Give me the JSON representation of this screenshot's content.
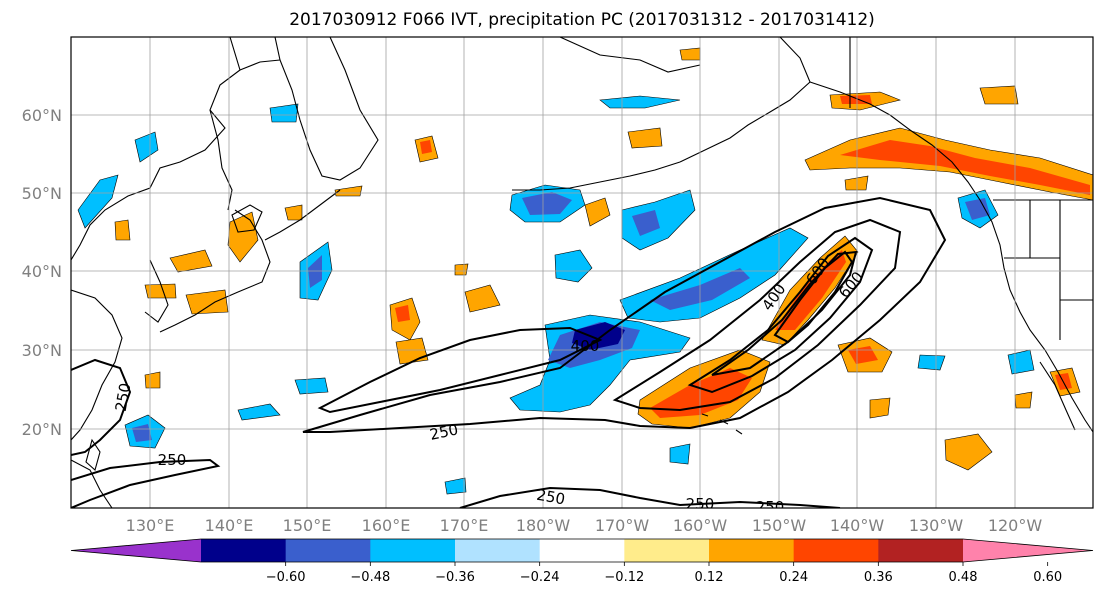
{
  "title": "2017030912 F066 IVT, precipitation PC (2017031312 - 2017031412)",
  "latitude_labels": [
    "60°N",
    "50°N",
    "40°N",
    "30°N",
    "20°N"
  ],
  "longitude_labels": [
    "130°E",
    "140°E",
    "150°E",
    "160°E",
    "170°E",
    "180°W",
    "170°W",
    "160°W",
    "150°W",
    "140°W",
    "130°W",
    "120°W"
  ],
  "colorbar": {
    "tick_labels": [
      "−0.60",
      "−0.48",
      "−0.36",
      "−0.24",
      "−0.12",
      "0.12",
      "0.24",
      "0.36",
      "0.48",
      "0.60"
    ],
    "colors": [
      "#9932cc",
      "#00008b",
      "#3a5fcd",
      "#00bfff",
      "#b0e2ff",
      "#ffffff",
      "#ffec8b",
      "#ffa500",
      "#ff4500",
      "#b22222",
      "#ff82ab"
    ]
  },
  "contour_labels": [
    "400",
    "600",
    "400",
    "600",
    "250",
    "250",
    "250",
    "250",
    "250",
    "250"
  ],
  "colors": {
    "land_outline": "#000000",
    "grid": "#a0a0a0",
    "contour": "#000000"
  }
}
